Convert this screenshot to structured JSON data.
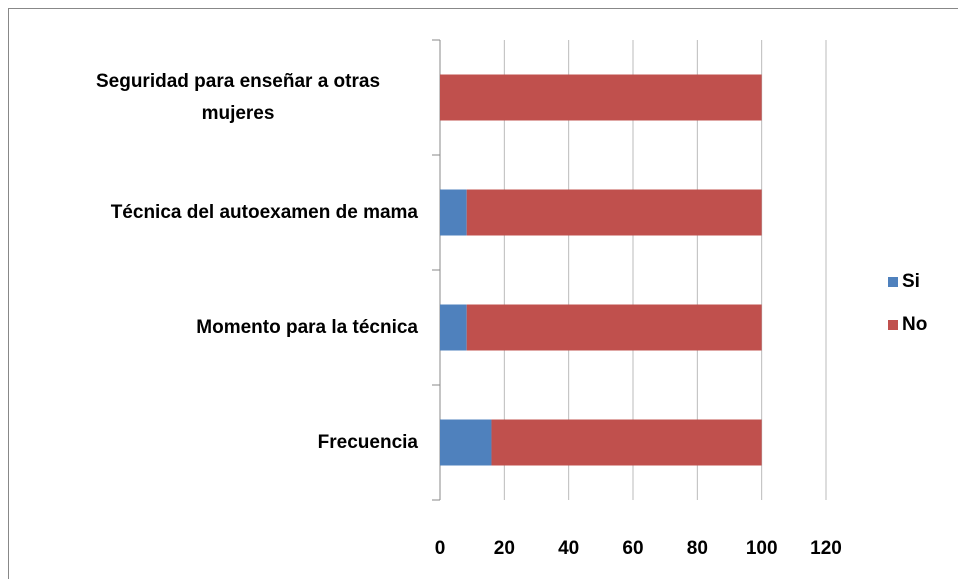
{
  "chart_data": {
    "type": "stacked-barh",
    "categories": [
      "Seguridad para enseñar a otras mujeres",
      "Técnica del autoexamen de mama",
      "Momento para la técnica",
      "Frecuencia"
    ],
    "series": [
      {
        "name": "Si",
        "color": "#4f81bd",
        "values": [
          0,
          8.3,
          8.3,
          16
        ]
      },
      {
        "name": "No",
        "color": "#c0504d",
        "values": [
          100,
          91.7,
          91.7,
          84
        ]
      }
    ],
    "xlim": [
      0,
      120
    ],
    "xticks": [
      0,
      20,
      40,
      60,
      80,
      100,
      120
    ],
    "grid": true,
    "legend": "right"
  }
}
